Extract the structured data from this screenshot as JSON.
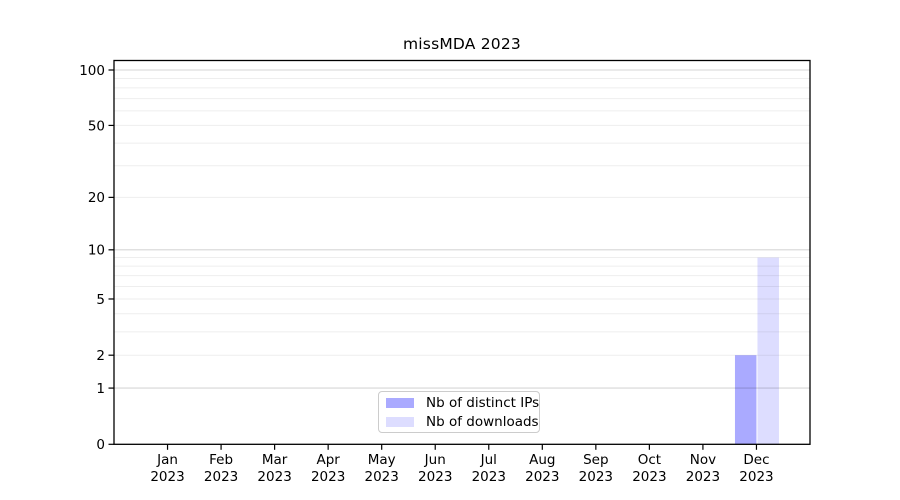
{
  "chart_data": {
    "type": "bar",
    "title": "missMDA 2023",
    "categories": [
      {
        "month": "Jan",
        "year": "2023"
      },
      {
        "month": "Feb",
        "year": "2023"
      },
      {
        "month": "Mar",
        "year": "2023"
      },
      {
        "month": "Apr",
        "year": "2023"
      },
      {
        "month": "May",
        "year": "2023"
      },
      {
        "month": "Jun",
        "year": "2023"
      },
      {
        "month": "Jul",
        "year": "2023"
      },
      {
        "month": "Aug",
        "year": "2023"
      },
      {
        "month": "Sep",
        "year": "2023"
      },
      {
        "month": "Oct",
        "year": "2023"
      },
      {
        "month": "Nov",
        "year": "2023"
      },
      {
        "month": "Dec",
        "year": "2023"
      }
    ],
    "series": [
      {
        "name": "Nb of distinct IPs",
        "color": "#aaaaff",
        "values": [
          0,
          0,
          0,
          0,
          0,
          0,
          0,
          0,
          0,
          0,
          0,
          2
        ]
      },
      {
        "name": "Nb of downloads",
        "color": "#ddddff",
        "values": [
          0,
          0,
          0,
          0,
          0,
          0,
          0,
          0,
          0,
          0,
          0,
          9
        ]
      }
    ],
    "xlabel": "",
    "ylabel": "",
    "y_axis": {
      "scale": "log1p",
      "ticks": [
        0,
        1,
        2,
        5,
        10,
        20,
        50,
        100
      ],
      "ylim": [
        0,
        113
      ]
    },
    "grid": {
      "on": true,
      "major_lines": [
        1,
        10,
        100
      ],
      "minor_lines": [
        2,
        3,
        4,
        5,
        6,
        7,
        8,
        9,
        20,
        30,
        40,
        50,
        60,
        70,
        80,
        90
      ]
    },
    "legend": {
      "position": "lower center",
      "entries": [
        "Nb of distinct IPs",
        "Nb of downloads"
      ]
    },
    "colors": {
      "bar_distinct_ips": "#aaaaff",
      "bar_downloads": "#ddddff",
      "grid_major": "#d9d9d9",
      "grid_minor": "#eeeeee",
      "axis": "#000000",
      "text": "#000000",
      "legend_border": "#cccccc"
    }
  }
}
